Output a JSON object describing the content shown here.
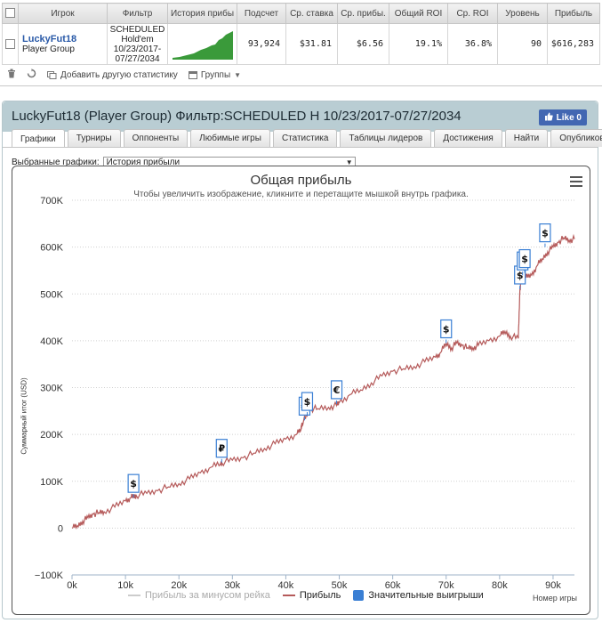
{
  "stats": {
    "columns": [
      "Игрок",
      "Фильтр",
      "История прибы",
      "Подсчет",
      "Ср. ставка",
      "Ср. прибы.",
      "Общий ROI",
      "Ср. ROI",
      "Уровень",
      "Прибыль"
    ],
    "row": {
      "player_name": "LuckyFut18",
      "player_group": "Player Group",
      "filter_lines": [
        "SCHEDULED",
        "Hold'em",
        "10/23/2017-",
        "07/27/2034"
      ],
      "count": "93,924",
      "avg_stake": "$31.81",
      "avg_profit": "$6.56",
      "total_roi": "19.1%",
      "avg_roi": "36.8%",
      "level": "90",
      "profit": "$616,283"
    },
    "toolbar": {
      "trash_icon": "trash-icon",
      "refresh_icon": "refresh-icon",
      "add_stat_label": "Добавить другую статистику",
      "groups_label": "Группы"
    }
  },
  "panel": {
    "title": "LuckyFut18 (Player Group) Фильтр:SCHEDULED H 10/23/2017-07/27/2034",
    "like_label": "Like 0",
    "tabs": [
      "Графики",
      "Турниры",
      "Оппоненты",
      "Любимые игры",
      "Статистика",
      "Таблицы лидеров",
      "Достижения",
      "Найти",
      "Опубликовать"
    ],
    "active_tab": "Графики",
    "selector_label": "Выбранные графики:",
    "selector_value": "История прибыли"
  },
  "chart_data": {
    "type": "line",
    "title": "Общая прибыль",
    "subtitle": "Чтобы увеличить изображение, кликните и перетащите мышкой внутрь графика.",
    "xlabel": "Номер игры",
    "ylabel": "Суммарный итог (USD)",
    "xlim": [
      0,
      94000
    ],
    "ylim": [
      -100000,
      700000
    ],
    "x_ticks": [
      "0k",
      "10k",
      "20k",
      "30k",
      "40k",
      "50k",
      "60k",
      "70k",
      "80k",
      "90k"
    ],
    "y_ticks": [
      "−100K",
      "0",
      "100K",
      "200K",
      "300K",
      "400K",
      "500K",
      "600K",
      "700K"
    ],
    "grid": true,
    "series": [
      {
        "name": "Прибыль за минусом рейка",
        "color": "#cccccc",
        "visible": false,
        "values": []
      },
      {
        "name": "Прибыль",
        "color": "#b55a5a",
        "x": [
          0,
          1000,
          2000,
          3000,
          4000,
          5000,
          6000,
          8000,
          10000,
          11000,
          11500,
          12000,
          14000,
          16000,
          18000,
          20000,
          22000,
          24000,
          26000,
          27800,
          28000,
          30000,
          32000,
          34000,
          36000,
          38000,
          40000,
          42000,
          42800,
          43000,
          44000,
          44500,
          46000,
          48000,
          49500,
          50000,
          52000,
          54000,
          56000,
          58000,
          60000,
          62000,
          64000,
          66000,
          68000,
          69000,
          70000,
          71000,
          72000,
          73000,
          74000,
          75000,
          76000,
          78000,
          80000,
          81000,
          82000,
          83500,
          83800,
          84000,
          84500,
          85000,
          86000,
          87000,
          88000,
          89000,
          90000,
          91000,
          92000,
          93000,
          94000
        ],
        "values": [
          0,
          5000,
          15000,
          22000,
          30000,
          33000,
          35000,
          45000,
          58000,
          65000,
          68000,
          70000,
          74000,
          80000,
          88000,
          95000,
          105000,
          118000,
          130000,
          138000,
          140000,
          145000,
          150000,
          160000,
          170000,
          180000,
          190000,
          200000,
          210000,
          225000,
          240000,
          255000,
          255000,
          258000,
          262000,
          268000,
          285000,
          295000,
          310000,
          325000,
          335000,
          340000,
          345000,
          355000,
          365000,
          375000,
          395000,
          385000,
          395000,
          390000,
          385000,
          385000,
          390000,
          400000,
          410000,
          420000,
          410000,
          405000,
          510000,
          525000,
          540000,
          535000,
          540000,
          560000,
          575000,
          590000,
          600000,
          610000,
          620000,
          615000,
          617000
        ]
      }
    ],
    "markers": {
      "name": "Значительные выигрыши",
      "color": "#3a7fd4",
      "items": [
        {
          "x": 11500,
          "y": 65000,
          "symbol": "$"
        },
        {
          "x": 28000,
          "y": 140000,
          "symbol": "₽"
        },
        {
          "x": 43500,
          "y": 230000,
          "symbol": "€"
        },
        {
          "x": 44000,
          "y": 240000,
          "symbol": "$"
        },
        {
          "x": 49500,
          "y": 265000,
          "symbol": "€"
        },
        {
          "x": 70000,
          "y": 395000,
          "symbol": "$"
        },
        {
          "x": 83800,
          "y": 510000,
          "symbol": "$"
        },
        {
          "x": 84300,
          "y": 540000,
          "symbol": "€"
        },
        {
          "x": 84700,
          "y": 545000,
          "symbol": "$"
        },
        {
          "x": 88500,
          "y": 600000,
          "symbol": "$"
        }
      ]
    },
    "legend": [
      "Прибыль за минусом рейка",
      "Прибыль",
      "Значительные выигрыши"
    ],
    "legend_position": "bottom"
  }
}
